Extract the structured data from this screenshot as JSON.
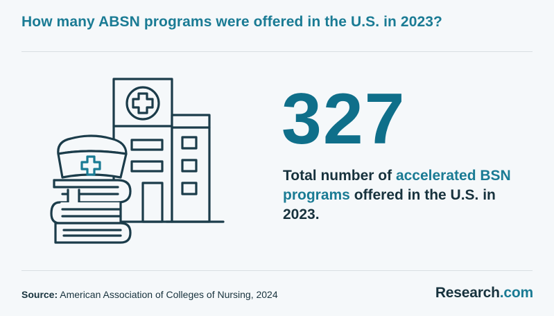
{
  "title": "How many ABSN programs were offered in the U.S. in 2023?",
  "stat": {
    "value": "327",
    "desc_pre": "Total number of ",
    "desc_highlight": "accelerated BSN programs",
    "desc_post": " offered in the U.S. in 2023."
  },
  "source": {
    "label": "Source:",
    "text": " American Association of Colleges of Nursing, 2024"
  },
  "brand": {
    "name": "Research",
    "suffix": ".com"
  },
  "colors": {
    "accent": "#1a7b94",
    "dark_text": "#17323d",
    "background": "#f5f8fa"
  },
  "icons": [
    "hospital-icon",
    "nurse-cap-icon",
    "books-icon"
  ]
}
